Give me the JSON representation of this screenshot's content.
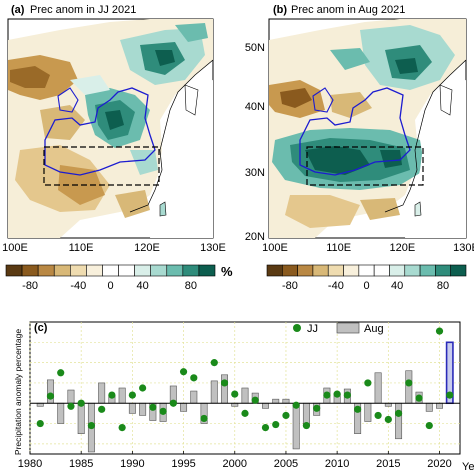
{
  "panel_a": {
    "label": "(a)",
    "title": "Prec anom in JJ 2021",
    "x_ticks": [
      "100E",
      "110E",
      "120E",
      "130E"
    ]
  },
  "panel_b": {
    "label": "(b)",
    "title": "Prec anom in Aug 2021",
    "x_ticks": [
      "100E",
      "110E",
      "120E",
      "130E"
    ],
    "y_ticks": [
      "50N",
      "40N",
      "30N",
      "20N"
    ]
  },
  "colorbar": {
    "ticks": [
      "-80",
      "-40",
      "0",
      "40",
      "80"
    ],
    "unit": "%",
    "colors": [
      "#5a3a13",
      "#8a5a1e",
      "#b98844",
      "#d8b877",
      "#efdcb0",
      "#f8f0dc",
      "#ffffff",
      "#ffffff",
      "#d9efe9",
      "#a8dad0",
      "#6bbcae",
      "#2f8c7b",
      "#0d5e4f"
    ]
  },
  "colors": {
    "jj_marker": "#1a8a1a",
    "aug_bar": "#c0c0c0",
    "highlight_bar": "#c8ccee",
    "highlight_edge": "#2a2ab8",
    "region_line": "#1c1cd0"
  },
  "chart_data": {
    "type": "bar",
    "panel_label": "(c)",
    "ylabel": "Precipitation anomaly percentage",
    "xlabel": "Year",
    "x_ticks": [
      1980,
      1985,
      1990,
      1995,
      2000,
      2005,
      2010,
      2015,
      2020
    ],
    "xlim": [
      1980,
      2022
    ],
    "ylim": [
      -50,
      80
    ],
    "grid": true,
    "legend_position": "top-right",
    "legend": [
      "JJ",
      "Aug"
    ],
    "x": [
      1981,
      1982,
      1983,
      1984,
      1985,
      1986,
      1987,
      1988,
      1989,
      1990,
      1991,
      1992,
      1993,
      1994,
      1995,
      1996,
      1997,
      1998,
      1999,
      2000,
      2001,
      2002,
      2003,
      2004,
      2005,
      2006,
      2007,
      2008,
      2009,
      2010,
      2011,
      2012,
      2013,
      2014,
      2015,
      2016,
      2017,
      2018,
      2019,
      2020,
      2021
    ],
    "series": [
      {
        "name": "JJ",
        "kind": "scatter",
        "values": [
          -20,
          7,
          30,
          -3,
          0,
          -22,
          -6,
          8,
          -24,
          8,
          15,
          -4,
          -8,
          0,
          31,
          25,
          -15,
          40,
          20,
          9,
          -10,
          3,
          -24,
          -21,
          -12,
          -2,
          -22,
          -5,
          8,
          9,
          8,
          -6,
          20,
          -12,
          -16,
          -10,
          20,
          5,
          -22,
          71,
          8
        ]
      },
      {
        "name": "Aug",
        "kind": "bar",
        "values": [
          -3,
          23,
          -20,
          13,
          -30,
          -48,
          20,
          7,
          15,
          -10,
          -12,
          -17,
          -18,
          17,
          -8,
          12,
          -20,
          22,
          28,
          -3,
          15,
          10,
          -5,
          4,
          4,
          -45,
          -22,
          -12,
          15,
          10,
          14,
          -30,
          -18,
          30,
          -3,
          -35,
          32,
          11,
          -8,
          -5,
          60
        ]
      }
    ],
    "highlight": {
      "x": 2021,
      "series": "Aug"
    }
  }
}
